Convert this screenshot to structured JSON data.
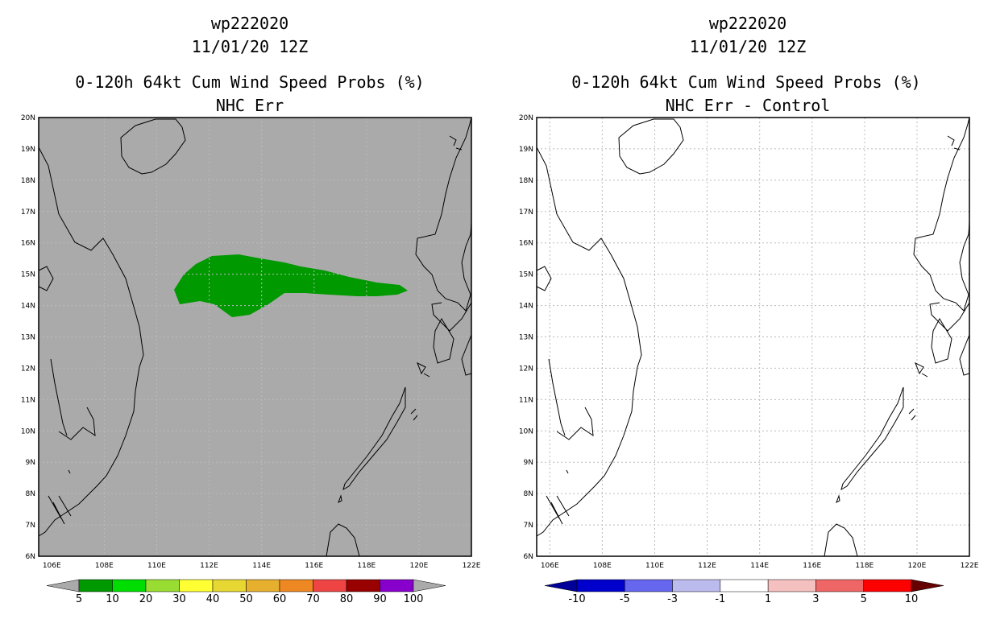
{
  "colors": {
    "land_bg": "#aaaaaa",
    "prob_fill": "#009900",
    "grid": "#bbbbbb"
  },
  "left": {
    "storm_id": "wp222020",
    "datetime": "11/01/20 12Z",
    "title": "0-120h 64kt Cum Wind Speed Probs (%)",
    "subtitle": "NHC Err"
  },
  "right": {
    "storm_id": "wp222020",
    "datetime": "11/01/20 12Z",
    "title": "0-120h 64kt Cum Wind Speed Probs (%)",
    "subtitle": "NHC Err - Control"
  },
  "map_axes": {
    "lat_labels": [
      "20N",
      "19N",
      "18N",
      "17N",
      "16N",
      "15N",
      "14N",
      "13N",
      "12N",
      "11N",
      "10N",
      "9N",
      "8N",
      "7N",
      "6N"
    ],
    "lon_labels": [
      "106E",
      "108E",
      "110E",
      "112E",
      "114E",
      "116E",
      "118E",
      "120E",
      "122E"
    ],
    "lon_range": [
      105.5,
      122
    ],
    "lat_range": [
      6,
      20
    ]
  },
  "left_scale": {
    "labels": [
      "5",
      "10",
      "20",
      "30",
      "40",
      "50",
      "60",
      "70",
      "80",
      "90",
      "100"
    ],
    "colors": [
      "#009900",
      "#00dd00",
      "#99dd33",
      "#ffff33",
      "#e6d733",
      "#e6b02e",
      "#ee8822",
      "#ee4444",
      "#990000",
      "#8800cc"
    ],
    "over_color": "#aaaaaa",
    "under_color": "#aaaaaa"
  },
  "right_scale": {
    "labels": [
      "-10",
      "-5",
      "-3",
      "-1",
      "1",
      "3",
      "5",
      "10"
    ],
    "colors": [
      "#0000cc",
      "#6666ee",
      "#bbbbee",
      "#ffffff",
      "#f5c0c0",
      "#ee6666",
      "#ff0000"
    ],
    "under_color": "#000099",
    "over_color": "#660000"
  }
}
